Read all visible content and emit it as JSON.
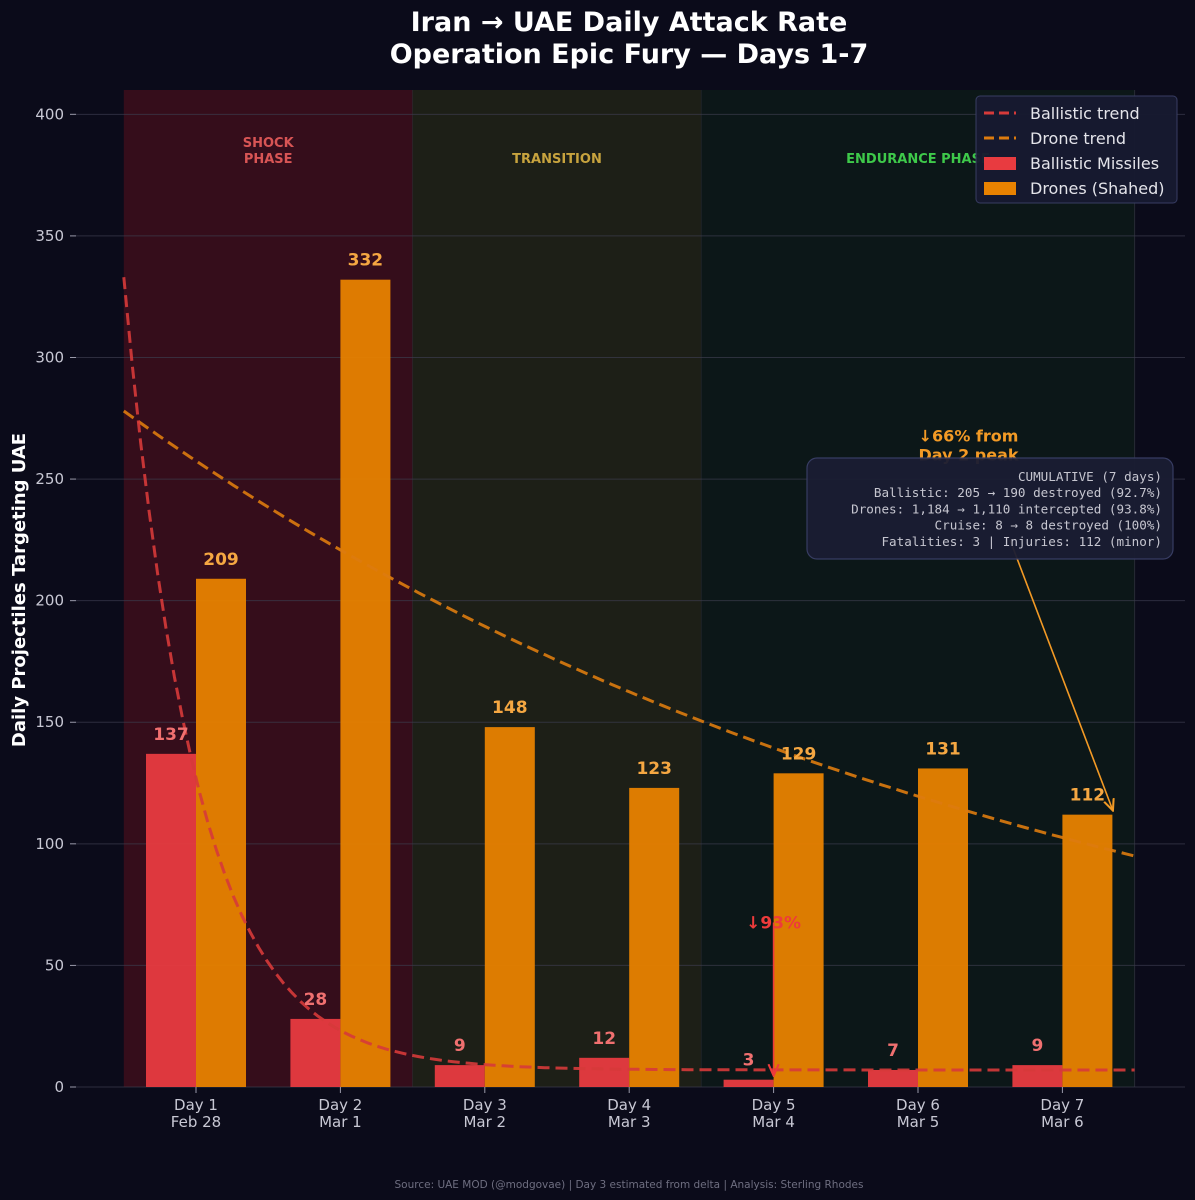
{
  "chart_data": {
    "type": "bar",
    "title_line1": "Iran → UAE Daily Attack Rate",
    "title_line2": "Operation Epic Fury — Days 1-7",
    "ylabel": "Daily Projectiles Targeting UAE",
    "xlabel": "",
    "ylim": [
      0,
      410
    ],
    "yticks": [
      0,
      50,
      100,
      150,
      200,
      250,
      300,
      350,
      400
    ],
    "grid": "horizontal",
    "categories": [
      [
        "Day 1",
        "Feb 28"
      ],
      [
        "Day 2",
        "Mar 1"
      ],
      [
        "Day 3",
        "Mar 2"
      ],
      [
        "Day 4",
        "Mar 3"
      ],
      [
        "Day 5",
        "Mar 4"
      ],
      [
        "Day 6",
        "Mar 5"
      ],
      [
        "Day 7",
        "Mar 6"
      ]
    ],
    "series": [
      {
        "name": "Ballistic Missiles",
        "color": "#e83b40",
        "values": [
          137,
          28,
          9,
          12,
          3,
          7,
          9
        ]
      },
      {
        "name": "Drones (Shahed)",
        "color": "#e88200",
        "values": [
          209,
          332,
          148,
          123,
          129,
          131,
          112
        ]
      }
    ],
    "trends": [
      {
        "name": "Ballistic trend",
        "color": "#d63a3a",
        "style": "dashed",
        "start": 333,
        "asymptote": 7,
        "decay": 2.0,
        "x_from": -0.5,
        "x_to": 6.5
      },
      {
        "name": "Drone trend",
        "color": "#dd7b0e",
        "style": "dashed",
        "start": 278,
        "end": 95,
        "x_from": -0.5,
        "x_to": 6.5
      }
    ],
    "phases": [
      {
        "label_lines": [
          "SHOCK",
          "PHASE"
        ],
        "x_from": -0.5,
        "x_to": 1.5,
        "color": "#3a0d1c",
        "label_color": "#d85555"
      },
      {
        "label_lines": [
          "TRANSITION"
        ],
        "x_from": 1.5,
        "x_to": 3.5,
        "color": "#1f2117",
        "label_color": "#c7a33e"
      },
      {
        "label_lines": [
          "ENDURANCE PHASE"
        ],
        "x_from": 3.5,
        "x_to": 6.5,
        "color": "#0c1818",
        "label_color": "#3ec94a"
      }
    ],
    "legend": {
      "placement": "top-right",
      "entries": [
        {
          "label": "Ballistic trend",
          "kind": "dash",
          "color": "#d63a3a"
        },
        {
          "label": "Drone trend",
          "kind": "dash",
          "color": "#dd7b0e"
        },
        {
          "label": "Ballistic Missiles",
          "kind": "box",
          "color": "#e83b40"
        },
        {
          "label": "Drones (Shahed)",
          "kind": "box",
          "color": "#e88200"
        }
      ]
    },
    "annotations": {
      "ballistic_drop": {
        "text": "↓93%",
        "color": "#ee3b3b",
        "text_at": [
          4.0,
          66
        ],
        "arrow_to": [
          4.0,
          3
        ]
      },
      "drone_drop": {
        "text_lines": [
          "↓66% from",
          "Day 2 peak"
        ],
        "color": "#f39a25",
        "text_at": [
          5.35,
          267
        ],
        "arrow_to": [
          6.35,
          112
        ]
      }
    },
    "cumulative_box": {
      "lines": [
        "CUMULATIVE (7 days)",
        "Ballistic: 205 → 190 destroyed (92.7%)",
        "Drones: 1,184 → 1,110 intercepted (93.8%)",
        "Cruise: 8 → 8 destroyed (100%)",
        "Fatalities: 3  |  Injuries: 112 (minor)"
      ]
    },
    "source": "Source: UAE MOD (@modgovae)  |  Day 3 estimated from delta  |  Analysis: Sterling Rhodes"
  }
}
